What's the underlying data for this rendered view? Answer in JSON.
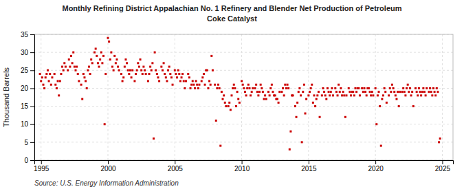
{
  "chart_data": {
    "type": "scatter",
    "title": "Monthly Refining District Appalachian No. 1 Refinery and Blender Net Production of Petroleum",
    "subtitle": "Coke Catalyst",
    "ylabel": "Thousand Barrels",
    "source": "Source: U.S. Energy Information Administration",
    "color": "#CC0000",
    "marker": "square",
    "grid": true,
    "xlim": [
      1994.5,
      2025.8
    ],
    "ylim": [
      0,
      35
    ],
    "xticks": [
      1995,
      2000,
      2005,
      2010,
      2015,
      2020,
      2025
    ],
    "yticks": [
      0,
      5,
      10,
      15,
      20,
      25,
      30,
      35
    ],
    "x": [
      1994.917,
      1995.0,
      1995.083,
      1995.167,
      1995.25,
      1995.333,
      1995.417,
      1995.5,
      1995.583,
      1995.667,
      1995.75,
      1995.833,
      1996.0,
      1996.083,
      1996.167,
      1996.25,
      1996.333,
      1996.417,
      1996.5,
      1996.583,
      1996.667,
      1996.75,
      1996.833,
      1997.0,
      1997.083,
      1997.167,
      1997.25,
      1997.333,
      1997.417,
      1997.5,
      1997.583,
      1997.667,
      1997.75,
      1997.833,
      1998.0,
      1998.083,
      1998.167,
      1998.25,
      1998.333,
      1998.417,
      1998.5,
      1998.583,
      1998.667,
      1998.75,
      1998.833,
      1999.0,
      1999.083,
      1999.167,
      1999.25,
      1999.333,
      1999.417,
      1999.5,
      1999.583,
      1999.667,
      1999.75,
      1999.833,
      2000.0,
      2000.083,
      2000.167,
      2000.25,
      2000.333,
      2000.417,
      2000.5,
      2000.583,
      2000.667,
      2000.75,
      2000.833,
      2001.0,
      2001.083,
      2001.167,
      2001.25,
      2001.333,
      2001.417,
      2001.5,
      2001.583,
      2001.667,
      2001.75,
      2001.833,
      2002.0,
      2002.083,
      2002.167,
      2002.25,
      2002.333,
      2002.417,
      2002.5,
      2002.583,
      2002.667,
      2002.75,
      2002.833,
      2003.0,
      2003.083,
      2003.167,
      2003.25,
      2003.333,
      2003.417,
      2003.5,
      2003.583,
      2003.667,
      2003.75,
      2003.833,
      2004.0,
      2004.083,
      2004.167,
      2004.25,
      2004.333,
      2004.417,
      2004.5,
      2004.583,
      2004.667,
      2004.75,
      2004.833,
      2005.0,
      2005.083,
      2005.167,
      2005.25,
      2005.333,
      2005.417,
      2005.5,
      2005.583,
      2005.667,
      2005.75,
      2005.833,
      2006.0,
      2006.083,
      2006.167,
      2006.25,
      2006.333,
      2006.417,
      2006.5,
      2006.583,
      2006.667,
      2006.75,
      2006.833,
      2007.0,
      2007.083,
      2007.167,
      2007.25,
      2007.333,
      2007.417,
      2007.5,
      2007.583,
      2007.667,
      2007.75,
      2007.833,
      2008.0,
      2008.083,
      2008.167,
      2008.25,
      2008.333,
      2008.417,
      2008.5,
      2008.583,
      2008.667,
      2008.75,
      2008.833,
      2009.0,
      2009.083,
      2009.167,
      2009.25,
      2009.333,
      2009.417,
      2009.5,
      2009.583,
      2009.667,
      2009.75,
      2009.833,
      2010.0,
      2010.083,
      2010.167,
      2010.25,
      2010.333,
      2010.417,
      2010.5,
      2010.583,
      2010.667,
      2010.75,
      2010.833,
      2011.0,
      2011.083,
      2011.167,
      2011.25,
      2011.333,
      2011.417,
      2011.5,
      2011.583,
      2011.667,
      2011.75,
      2011.833,
      2012.0,
      2012.083,
      2012.167,
      2012.25,
      2012.333,
      2012.417,
      2012.5,
      2012.583,
      2012.667,
      2012.75,
      2012.833,
      2013.0,
      2013.083,
      2013.167,
      2013.25,
      2013.333,
      2013.417,
      2013.5,
      2013.583,
      2013.667,
      2013.75,
      2013.833,
      2014.0,
      2014.083,
      2014.167,
      2014.25,
      2014.333,
      2014.417,
      2014.5,
      2014.583,
      2014.667,
      2014.75,
      2014.833,
      2015.0,
      2015.083,
      2015.167,
      2015.25,
      2015.333,
      2015.417,
      2015.5,
      2015.583,
      2015.667,
      2015.75,
      2015.833,
      2016.0,
      2016.083,
      2016.167,
      2016.25,
      2016.333,
      2016.417,
      2016.5,
      2016.583,
      2016.667,
      2016.75,
      2016.833,
      2017.0,
      2017.083,
      2017.167,
      2017.25,
      2017.333,
      2017.417,
      2017.5,
      2017.583,
      2017.667,
      2017.75,
      2017.833,
      2018.0,
      2018.083,
      2018.167,
      2018.25,
      2018.333,
      2018.417,
      2018.5,
      2018.583,
      2018.667,
      2018.75,
      2018.833,
      2019.0,
      2019.083,
      2019.167,
      2019.25,
      2019.333,
      2019.417,
      2019.5,
      2019.583,
      2019.667,
      2019.75,
      2019.833,
      2020.0,
      2020.083,
      2020.167,
      2020.25,
      2020.333,
      2020.417,
      2020.5,
      2020.583,
      2020.667,
      2020.75,
      2020.833,
      2021.0,
      2021.083,
      2021.167,
      2021.25,
      2021.333,
      2021.417,
      2021.5,
      2021.583,
      2021.667,
      2021.75,
      2021.833,
      2022.0,
      2022.083,
      2022.167,
      2022.25,
      2022.333,
      2022.417,
      2022.5,
      2022.583,
      2022.667,
      2022.75,
      2022.833,
      2023.0,
      2023.083,
      2023.167,
      2023.25,
      2023.333,
      2023.417,
      2023.5,
      2023.583,
      2023.667,
      2023.75,
      2023.833,
      2024.0,
      2024.083,
      2024.167,
      2024.25,
      2024.333,
      2024.417,
      2024.5,
      2024.583,
      2024.667,
      2024.75,
      2024.833
    ],
    "values": [
      24,
      22,
      23,
      21,
      20,
      23,
      24,
      25,
      22,
      24,
      21,
      23,
      24,
      21,
      20,
      22,
      18,
      22,
      24,
      26,
      25,
      27,
      26,
      25,
      28,
      26,
      29,
      27,
      30,
      26,
      25,
      26,
      24,
      22,
      21,
      17,
      24,
      23,
      22,
      20,
      25,
      26,
      24,
      28,
      27,
      30,
      31,
      29,
      27,
      26,
      28,
      30,
      27,
      29,
      10,
      24,
      34,
      33,
      28,
      30,
      26,
      25,
      29,
      27,
      28,
      26,
      25,
      24,
      22,
      23,
      26,
      28,
      27,
      25,
      24,
      25,
      23,
      25,
      22,
      24,
      25,
      27,
      26,
      28,
      25,
      24,
      26,
      25,
      24,
      22,
      24,
      26,
      25,
      27,
      6,
      30,
      25,
      24,
      23,
      22,
      26,
      25,
      27,
      24,
      23,
      22,
      25,
      26,
      24,
      23,
      21,
      25,
      24,
      23,
      25,
      24,
      22,
      23,
      24,
      22,
      20,
      22,
      24,
      23,
      20,
      21,
      22,
      21,
      20,
      22,
      21,
      20,
      21,
      22,
      23,
      24,
      21,
      25,
      25,
      20,
      22,
      21,
      29,
      25,
      21,
      11,
      20,
      21,
      20,
      4,
      19,
      17,
      18,
      16,
      15,
      15,
      16,
      14,
      18,
      20,
      21,
      20,
      15,
      19,
      17,
      16,
      22,
      21,
      20,
      19,
      18,
      20,
      21,
      20,
      18,
      19,
      20,
      20,
      21,
      19,
      18,
      19,
      21,
      20,
      19,
      17,
      18,
      17,
      19,
      18,
      20,
      21,
      19,
      18,
      18,
      17,
      17,
      16,
      19,
      19,
      20,
      18,
      21,
      20,
      21,
      20,
      3,
      8,
      18,
      18,
      15,
      12,
      16,
      19,
      20,
      18,
      5,
      19,
      21,
      13,
      17,
      18,
      19,
      20,
      21,
      16,
      18,
      15,
      17,
      18,
      19,
      12,
      18,
      20,
      19,
      18,
      17,
      20,
      19,
      18,
      19,
      20,
      18,
      20,
      19,
      18,
      21,
      19,
      20,
      18,
      19,
      18,
      12,
      18,
      20,
      19,
      18,
      19,
      19,
      18,
      20,
      19,
      20,
      20,
      18,
      20,
      19,
      20,
      19,
      18,
      20,
      20,
      19,
      18,
      19,
      18,
      20,
      10,
      18,
      19,
      15,
      4,
      17,
      18,
      20,
      19,
      16,
      18,
      20,
      19,
      21,
      20,
      19,
      18,
      17,
      19,
      15,
      19,
      19,
      20,
      19,
      18,
      20,
      21,
      19,
      20,
      18,
      19,
      15,
      20,
      19,
      18,
      20,
      19,
      18,
      19,
      20,
      19,
      18,
      20,
      19,
      20,
      19,
      18,
      20,
      19,
      18,
      20,
      19,
      5,
      6
    ]
  }
}
